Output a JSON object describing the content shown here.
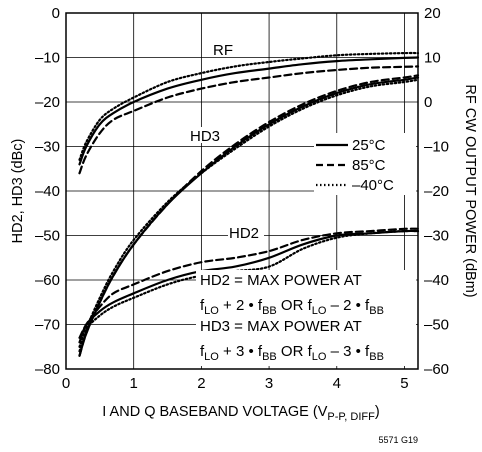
{
  "chart_data": {
    "type": "line",
    "xlabel": "I AND Q BASEBAND VOLTAGE (V",
    "xlabel_sub": "P-P, DIFF",
    "xlabel_end": ")",
    "ylabel_left": "HD2, HD3 (dBc)",
    "ylabel_right": "RF CW OUTPUT POWER (dBm)",
    "xlim": [
      0,
      5.2
    ],
    "xticks": [
      "0",
      "1",
      "2",
      "3",
      "4",
      "5"
    ],
    "ylim_left": [
      -80,
      0
    ],
    "yticks_left": [
      "0",
      "–10",
      "–20",
      "–30",
      "–40",
      "–50",
      "–60",
      "–70",
      "–80"
    ],
    "ylim_right": [
      -60,
      20
    ],
    "yticks_right": [
      "20",
      "10",
      "0",
      "–10",
      "–20",
      "–30",
      "–40",
      "–50",
      "–60"
    ],
    "grid": true,
    "legend": {
      "position": "right-middle",
      "entries": [
        {
          "label": "25°C",
          "style": "solid"
        },
        {
          "label": "85°C",
          "style": "dashed"
        },
        {
          "label": "–40°C",
          "style": "dotted"
        }
      ]
    },
    "curve_labels": {
      "rf": "RF",
      "hd3": "HD3",
      "hd2": "HD2"
    },
    "annotation": {
      "line1": "HD2 = MAX POWER AT",
      "line3": "HD3 = MAX POWER AT"
    },
    "figure_code": "5571 G19",
    "series": [
      {
        "group": "RF",
        "axis": "right",
        "temp": "25°C",
        "style": "solid",
        "x": [
          0.2,
          0.3,
          0.5,
          0.7,
          1.0,
          1.5,
          2.0,
          2.5,
          3.0,
          3.5,
          4.0,
          4.5,
          5.0,
          5.2
        ],
        "y": [
          -14,
          -10,
          -5,
          -2.5,
          0,
          3,
          5,
          6.5,
          7.5,
          8.5,
          9.2,
          9.6,
          9.9,
          10
        ]
      },
      {
        "group": "RF",
        "axis": "right",
        "temp": "85°C",
        "style": "dashed",
        "x": [
          0.2,
          0.3,
          0.5,
          0.7,
          1.0,
          1.5,
          2.0,
          2.5,
          3.0,
          3.5,
          4.0,
          4.5,
          5.0,
          5.2
        ],
        "y": [
          -16,
          -12,
          -7,
          -4,
          -2,
          1,
          3,
          4.5,
          5.5,
          6.5,
          7.2,
          7.7,
          7.9,
          8
        ]
      },
      {
        "group": "RF",
        "axis": "right",
        "temp": "–40°C",
        "style": "dotted",
        "x": [
          0.2,
          0.3,
          0.5,
          0.7,
          1.0,
          1.5,
          2.0,
          2.5,
          3.0,
          3.5,
          4.0,
          4.5,
          5.0,
          5.2
        ],
        "y": [
          -13,
          -9,
          -4,
          -1.5,
          1,
          4.5,
          6.5,
          8,
          9,
          9.8,
          10.5,
          10.8,
          11,
          11
        ]
      },
      {
        "group": "HD3",
        "axis": "left",
        "temp": "25°C",
        "style": "solid",
        "x": [
          0.2,
          0.3,
          0.5,
          0.7,
          1.0,
          1.5,
          2.0,
          2.5,
          3.0,
          3.5,
          4.0,
          4.5,
          5.0,
          5.2
        ],
        "y": [
          -77,
          -72,
          -65,
          -59,
          -52,
          -43,
          -36,
          -30,
          -25,
          -21,
          -18,
          -16,
          -15,
          -14.5
        ]
      },
      {
        "group": "HD3",
        "axis": "left",
        "temp": "85°C",
        "style": "dashed",
        "x": [
          0.2,
          0.3,
          0.5,
          0.7,
          1.0,
          1.5,
          2.0,
          2.5,
          3.0,
          3.5,
          4.0,
          4.5,
          5.0,
          5.2
        ],
        "y": [
          -77,
          -72,
          -65,
          -59,
          -52,
          -43,
          -35.5,
          -29.5,
          -24.5,
          -20.5,
          -17.5,
          -15.5,
          -14.5,
          -14
        ]
      },
      {
        "group": "HD3",
        "axis": "left",
        "temp": "–40°C",
        "style": "dotted",
        "x": [
          0.2,
          0.3,
          0.5,
          0.7,
          1.0,
          1.5,
          2.0,
          2.5,
          3.0,
          3.5,
          4.0,
          4.5,
          5.0,
          5.2
        ],
        "y": [
          -76,
          -71,
          -64,
          -58,
          -51,
          -42.5,
          -36,
          -30.5,
          -25.5,
          -21.5,
          -18.5,
          -16.5,
          -15.5,
          -15
        ]
      },
      {
        "group": "HD2",
        "axis": "left",
        "temp": "25°C",
        "style": "solid",
        "x": [
          0.2,
          0.3,
          0.5,
          0.7,
          1.0,
          1.5,
          2.0,
          2.5,
          3.0,
          3.5,
          4.0,
          4.5,
          5.0,
          5.2
        ],
        "y": [
          -74,
          -70,
          -67,
          -65,
          -63,
          -60,
          -58,
          -57,
          -55,
          -52,
          -50,
          -49.5,
          -49,
          -49
        ]
      },
      {
        "group": "HD2",
        "axis": "left",
        "temp": "85°C",
        "style": "dashed",
        "x": [
          0.2,
          0.3,
          0.5,
          0.7,
          1.0,
          1.5,
          2.0,
          2.5,
          3.0,
          3.5,
          4.0,
          4.5,
          5.0,
          5.2
        ],
        "y": [
          -73,
          -70,
          -66,
          -63,
          -61,
          -58,
          -56,
          -55,
          -53.5,
          -51,
          -49.5,
          -49,
          -48.5,
          -48.5
        ]
      },
      {
        "group": "HD2",
        "axis": "left",
        "temp": "–40°C",
        "style": "dotted",
        "x": [
          0.2,
          0.3,
          0.5,
          0.7,
          1.0,
          1.5,
          2.0,
          2.5,
          3.0,
          3.5,
          4.0,
          4.5,
          5.0,
          5.2
        ],
        "y": [
          -75,
          -71,
          -68,
          -66,
          -64,
          -61,
          -59,
          -58,
          -57,
          -53,
          -50.5,
          -49.5,
          -49,
          -49
        ]
      }
    ]
  }
}
